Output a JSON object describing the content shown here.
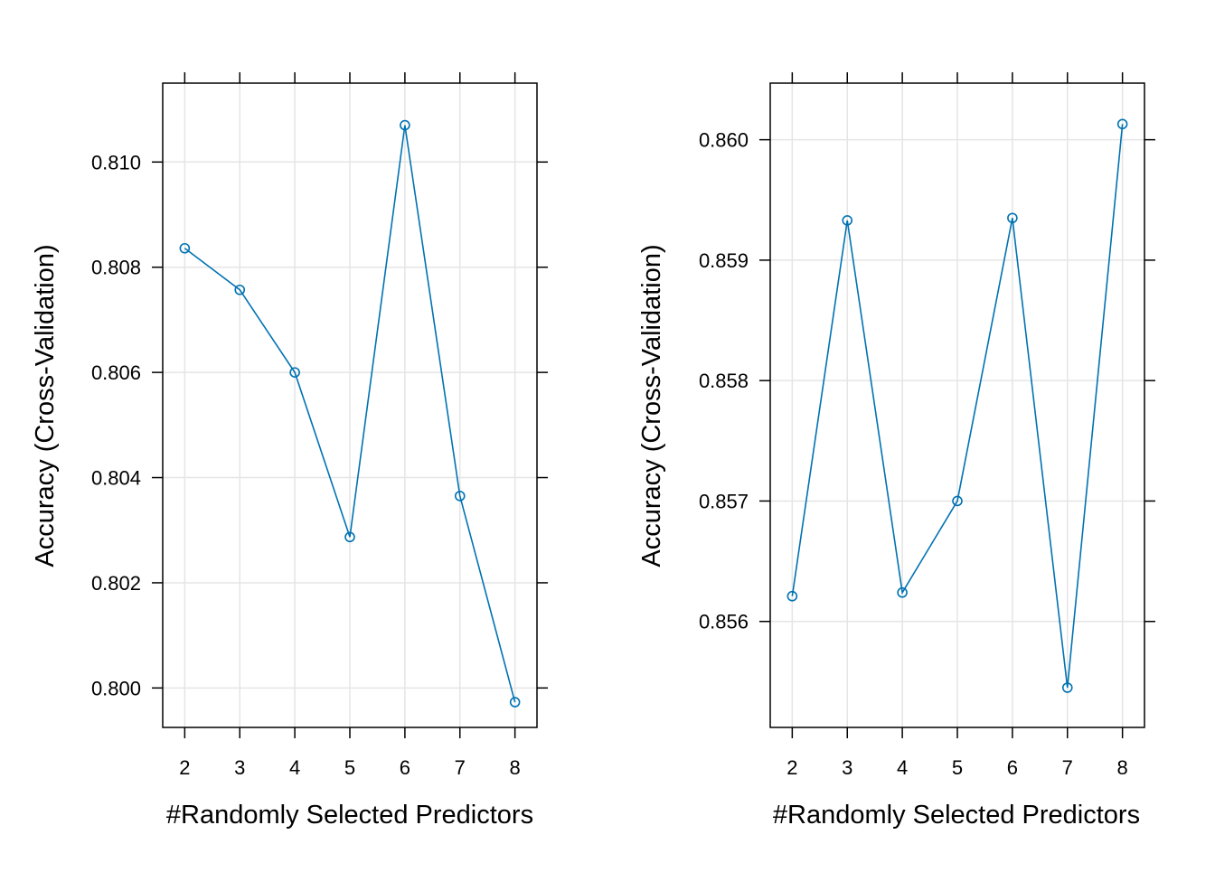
{
  "colors": {
    "series": "#0072B2",
    "grid": "#E5E5E5",
    "frame": "#000000",
    "background": "#FFFFFF"
  },
  "chart_data": [
    {
      "type": "line",
      "markers": "open-circle",
      "title": "",
      "xlabel": "#Randomly Selected Predictors",
      "ylabel": "Accuracy (Cross-Validation)",
      "x": [
        2,
        3,
        4,
        5,
        6,
        7,
        8
      ],
      "series": [
        {
          "values": [
            0.80836,
            0.80757,
            0.806,
            0.80287,
            0.8107,
            0.80365,
            0.79973
          ]
        }
      ],
      "xlim": [
        1.6,
        8.4
      ],
      "ylim": [
        0.79925,
        0.8115
      ],
      "xticks": [
        2,
        3,
        4,
        5,
        6,
        7,
        8
      ],
      "xtick_labels": [
        "2",
        "3",
        "4",
        "5",
        "6",
        "7",
        "8"
      ],
      "yticks": [
        0.8,
        0.802,
        0.804,
        0.806,
        0.808,
        0.81
      ],
      "ytick_labels": [
        "0.800",
        "0.802",
        "0.804",
        "0.806",
        "0.808",
        "0.810"
      ],
      "grid": true
    },
    {
      "type": "line",
      "markers": "open-circle",
      "title": "",
      "xlabel": "#Randomly Selected Predictors",
      "ylabel": "Accuracy (Cross-Validation)",
      "x": [
        2,
        3,
        4,
        5,
        6,
        7,
        8
      ],
      "series": [
        {
          "values": [
            0.85621,
            0.85933,
            0.85624,
            0.857,
            0.85935,
            0.85545,
            0.86013
          ]
        }
      ],
      "xlim": [
        1.6,
        8.4
      ],
      "ylim": [
        0.85512,
        0.86047
      ],
      "xticks": [
        2,
        3,
        4,
        5,
        6,
        7,
        8
      ],
      "xtick_labels": [
        "2",
        "3",
        "4",
        "5",
        "6",
        "7",
        "8"
      ],
      "yticks": [
        0.856,
        0.857,
        0.858,
        0.859,
        0.86
      ],
      "ytick_labels": [
        "0.856",
        "0.857",
        "0.858",
        "0.859",
        "0.860"
      ],
      "grid": true
    }
  ]
}
